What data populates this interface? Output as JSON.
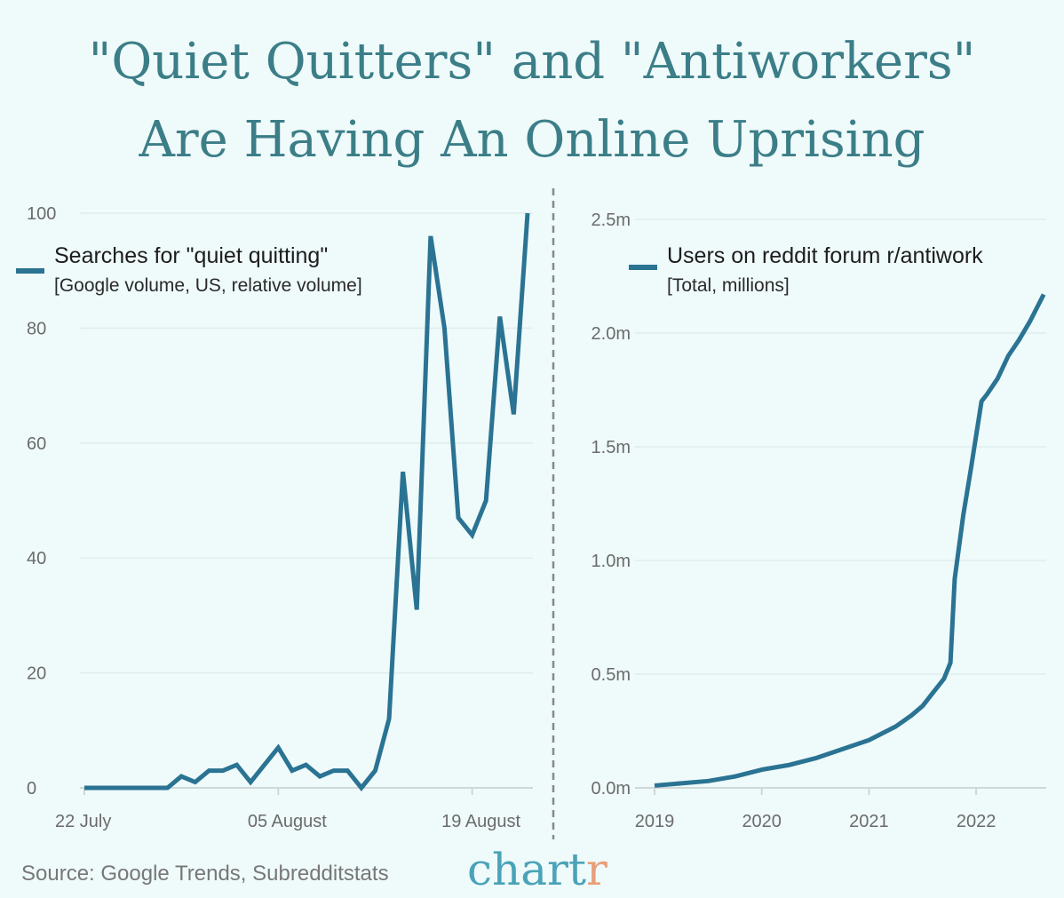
{
  "title_lines": [
    "\"Quiet Quitters\" and \"Antiworkers\"",
    "Are Having An Online Uprising"
  ],
  "source": "Source: Google Trends, Subredditstats",
  "brand": {
    "main": "chart",
    "accent": "r",
    "main_color": "#4aa3b8",
    "accent_color": "#e8a07a"
  },
  "colors": {
    "background": "#effafa",
    "line": "#2a7393",
    "title": "#3b7e88",
    "grid": "#e0ecec"
  },
  "chart_data": [
    {
      "type": "line",
      "legend": {
        "name": "Searches for \"quiet quitting\"",
        "sub": "[Google volume, US, relative volume]",
        "placement": "top-left"
      },
      "x_start": "2022-07-22",
      "x_end": "2022-08-23",
      "x_ticks": [
        {
          "label": "22 July",
          "date": "2022-07-22"
        },
        {
          "label": "05 August",
          "date": "2022-08-05"
        },
        {
          "label": "19 August",
          "date": "2022-08-19"
        }
      ],
      "y_ticks": [
        0,
        20,
        40,
        60,
        80,
        100
      ],
      "ylim": [
        0,
        100
      ],
      "grid": true,
      "values": [
        0,
        0,
        0,
        0,
        0,
        0,
        0,
        2,
        1,
        3,
        3,
        4,
        1,
        4,
        7,
        3,
        4,
        2,
        3,
        3,
        0,
        3,
        12,
        55,
        31,
        96,
        80,
        47,
        44,
        50,
        82,
        65,
        100
      ]
    },
    {
      "type": "line",
      "legend": {
        "name": "Users on reddit forum r/antiwork",
        "sub": "[Total, millions]",
        "placement": "top-left"
      },
      "x_ticks": [
        "2019",
        "2020",
        "2021",
        "2022"
      ],
      "y_ticks": [
        "0.0m",
        "0.5m",
        "1.0m",
        "1.5m",
        "2.0m",
        "2.5m"
      ],
      "ylim": [
        0,
        2.5
      ],
      "grid": true,
      "points": [
        [
          2019.0,
          0.01
        ],
        [
          2019.25,
          0.02
        ],
        [
          2019.5,
          0.03
        ],
        [
          2019.75,
          0.05
        ],
        [
          2020.0,
          0.08
        ],
        [
          2020.25,
          0.1
        ],
        [
          2020.5,
          0.13
        ],
        [
          2020.75,
          0.17
        ],
        [
          2021.0,
          0.21
        ],
        [
          2021.25,
          0.27
        ],
        [
          2021.4,
          0.32
        ],
        [
          2021.5,
          0.36
        ],
        [
          2021.6,
          0.42
        ],
        [
          2021.7,
          0.48
        ],
        [
          2021.76,
          0.55
        ],
        [
          2021.8,
          0.92
        ],
        [
          2021.88,
          1.2
        ],
        [
          2021.95,
          1.4
        ],
        [
          2022.0,
          1.55
        ],
        [
          2022.05,
          1.7
        ],
        [
          2022.1,
          1.73
        ],
        [
          2022.2,
          1.8
        ],
        [
          2022.3,
          1.9
        ],
        [
          2022.4,
          1.97
        ],
        [
          2022.5,
          2.05
        ],
        [
          2022.63,
          2.17
        ]
      ]
    }
  ]
}
